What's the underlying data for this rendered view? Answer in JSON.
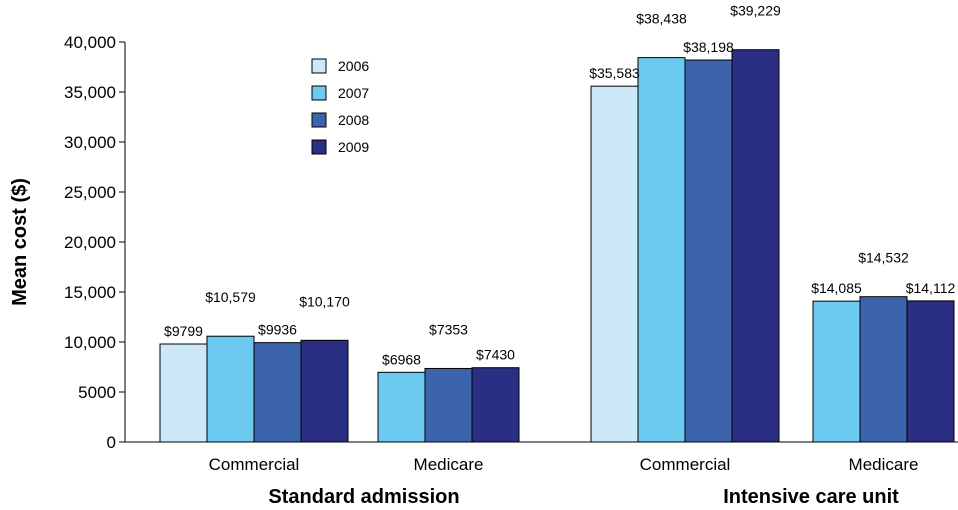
{
  "chart_data": {
    "type": "bar",
    "ylabel": "Mean cost ($)",
    "ylim": [
      0,
      40000
    ],
    "yticks": [
      0,
      5000,
      10000,
      15000,
      20000,
      25000,
      30000,
      35000,
      40000
    ],
    "ytick_labels": [
      "0",
      "5000",
      "10,000",
      "15,000",
      "20,000",
      "25,000",
      "30,000",
      "35,000",
      "40,000"
    ],
    "grid": false,
    "legend": {
      "placement": "upper-left-inside",
      "entries": [
        "2006",
        "2007",
        "2008",
        "2009"
      ]
    },
    "series_colors": {
      "2006": "#cce8f9",
      "2007": "#6ccaf1",
      "2008": "#3c64ad",
      "2009": "#2b2f83"
    },
    "groups": [
      {
        "label": "Standard admission",
        "categories": [
          {
            "label": "Commercial",
            "bars": [
              {
                "series": "2006",
                "value": 9799,
                "label": "$9799"
              },
              {
                "series": "2007",
                "value": 10579,
                "label": "$10,579"
              },
              {
                "series": "2008",
                "value": 9936,
                "label": "$9936"
              },
              {
                "series": "2009",
                "value": 10170,
                "label": "$10,170"
              }
            ]
          },
          {
            "label": "Medicare",
            "bars": [
              {
                "series": "2007",
                "value": 6968,
                "label": "$6968"
              },
              {
                "series": "2008",
                "value": 7353,
                "label": "$7353"
              },
              {
                "series": "2009",
                "value": 7430,
                "label": "$7430"
              }
            ]
          }
        ]
      },
      {
        "label": "Intensive care unit",
        "categories": [
          {
            "label": "Commercial",
            "bars": [
              {
                "series": "2006",
                "value": 35583,
                "label": "$35,583"
              },
              {
                "series": "2007",
                "value": 38438,
                "label": "$38,438"
              },
              {
                "series": "2008",
                "value": 38198,
                "label": "$38,198"
              },
              {
                "series": "2009",
                "value": 39229,
                "label": "$39,229"
              }
            ]
          },
          {
            "label": "Medicare",
            "bars": [
              {
                "series": "2007",
                "value": 14085,
                "label": "$14,085"
              },
              {
                "series": "2008",
                "value": 14532,
                "label": "$14,532"
              },
              {
                "series": "2009",
                "value": 14112,
                "label": "$14,112"
              }
            ]
          }
        ]
      }
    ]
  }
}
